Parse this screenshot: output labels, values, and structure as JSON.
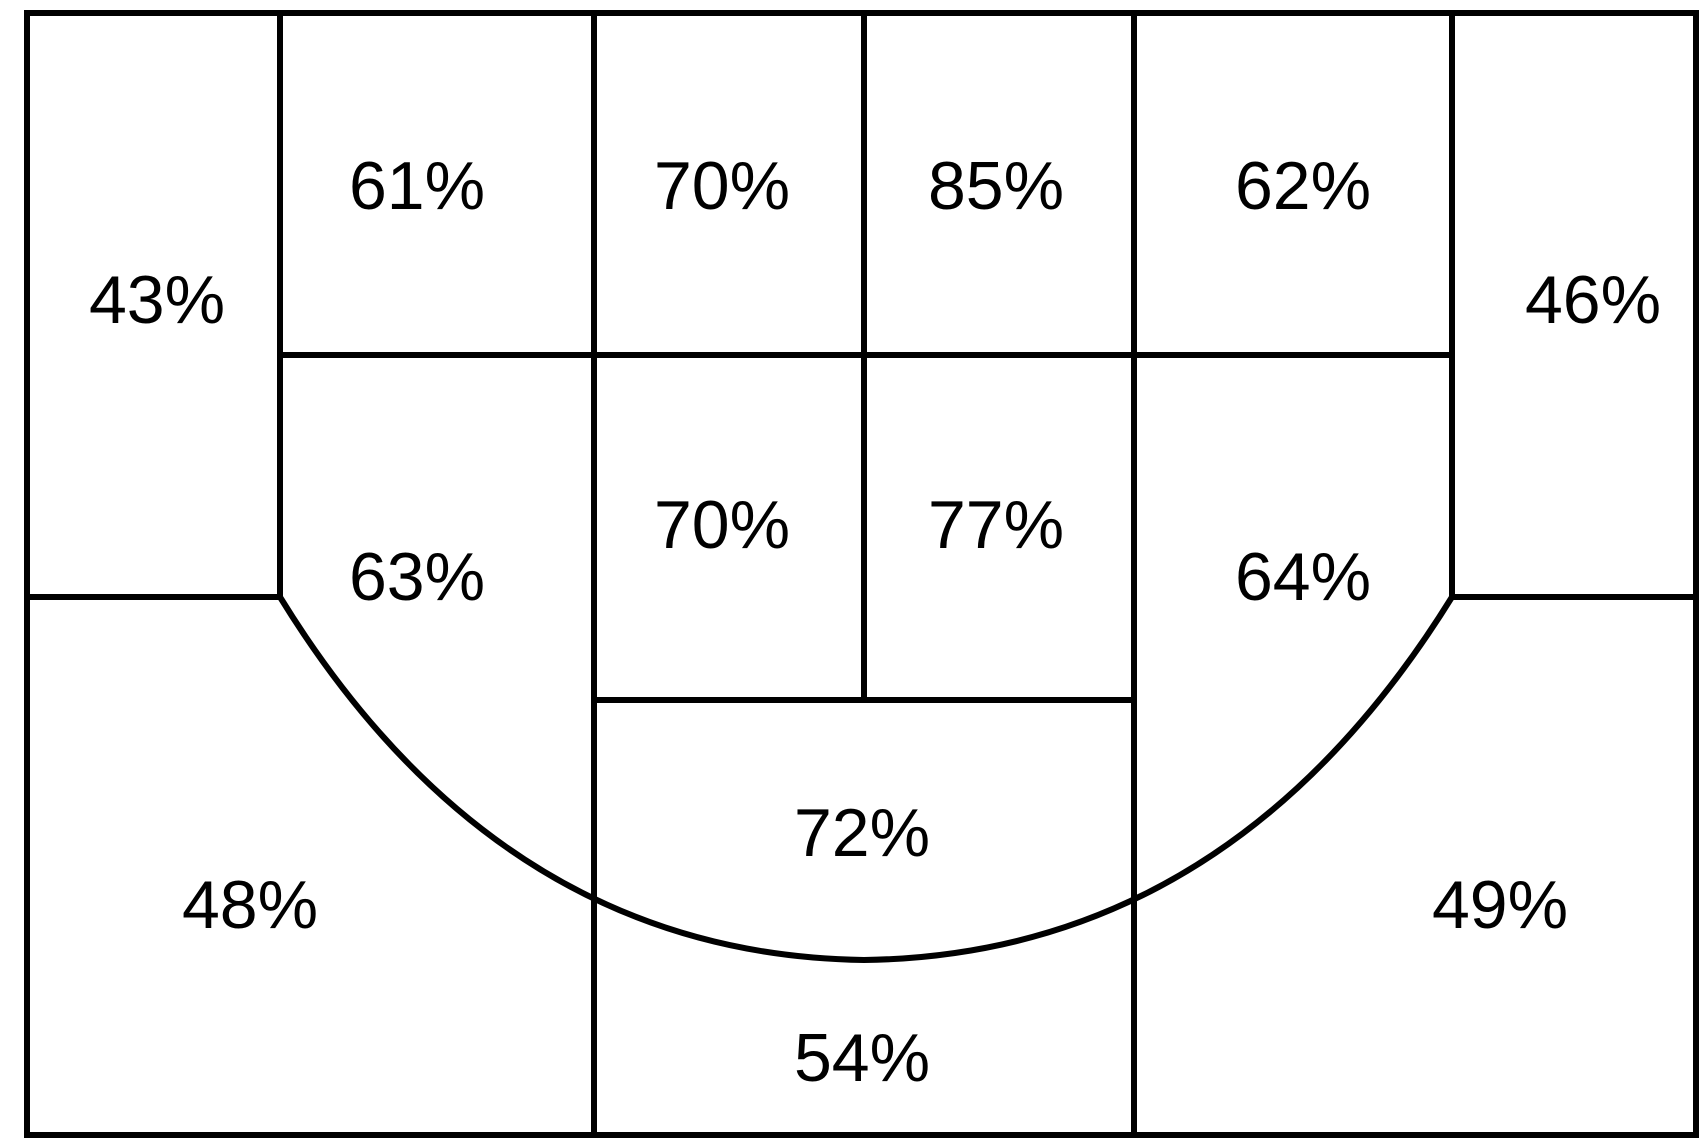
{
  "zones": {
    "left_corner_upper": "43%",
    "right_corner_upper": "46%",
    "top_row_1": "61%",
    "top_row_2": "70%",
    "top_row_3": "85%",
    "top_row_4": "62%",
    "mid_left_wing": "63%",
    "paint_left": "70%",
    "paint_right": "77%",
    "mid_right_wing": "64%",
    "free_throw": "72%",
    "left_three": "48%",
    "top_three": "54%",
    "right_three": "49%"
  }
}
